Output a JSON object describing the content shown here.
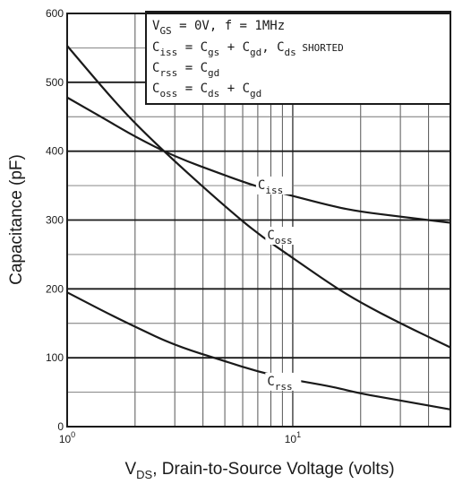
{
  "chart_data": {
    "type": "line",
    "xscale": "log",
    "xlim": [
      1,
      50
    ],
    "ylim": [
      0,
      600
    ],
    "grid": true,
    "x_ticks": [
      {
        "value": 1,
        "base": "10",
        "exp": "0"
      },
      {
        "value": 10,
        "base": "10",
        "exp": "1"
      }
    ],
    "y_ticks": [
      "0",
      "100",
      "200",
      "300",
      "400",
      "500",
      "600"
    ],
    "ylabel": "Capacitance (pF)",
    "xlabel": {
      "main": "V",
      "sub": "DS",
      "rest": ", Drain-to-Source Voltage (volts)"
    },
    "legend": {
      "line1": {
        "a": "V",
        "a_sub": "GS",
        "b": " = 0V,  f = 1MHz"
      },
      "line2": {
        "a": "C",
        "a_sub": "iss",
        "b": " = C",
        "b_sub": "gs",
        "c": " + C",
        "c_sub": "gd",
        "d": ",  C",
        "d_sub": "ds",
        "e": " SHORTED"
      },
      "line3": {
        "a": "C",
        "a_sub": "rss",
        "b": " = C",
        "b_sub": "gd"
      },
      "line4": {
        "a": "C",
        "a_sub": "oss",
        "b": " = C",
        "b_sub": "ds",
        "c": " + C",
        "c_sub": "gd"
      }
    },
    "series": [
      {
        "name": "C",
        "name_sub": "iss",
        "x": [
          1,
          1.5,
          2,
          3,
          5,
          7,
          10,
          15,
          20,
          30,
          50
        ],
        "y": [
          478,
          445,
          421,
          392,
          365,
          348,
          335,
          320,
          312,
          305,
          296
        ],
        "label_at": [
          7,
          345
        ]
      },
      {
        "name": "C",
        "name_sub": "oss",
        "x": [
          1,
          1.5,
          2,
          3,
          5,
          7,
          10,
          15,
          20,
          30,
          50
        ],
        "y": [
          553,
          485,
          440,
          385,
          320,
          280,
          245,
          205,
          180,
          150,
          115
        ],
        "label_at": [
          7.7,
          272
        ]
      },
      {
        "name": "C",
        "name_sub": "rss",
        "x": [
          1,
          1.5,
          2,
          3,
          5,
          7,
          10,
          15,
          20,
          30,
          50
        ],
        "y": [
          195,
          165,
          145,
          118,
          95,
          80,
          68,
          58,
          48,
          38,
          25
        ],
        "label_at": [
          7.7,
          60
        ]
      }
    ]
  }
}
